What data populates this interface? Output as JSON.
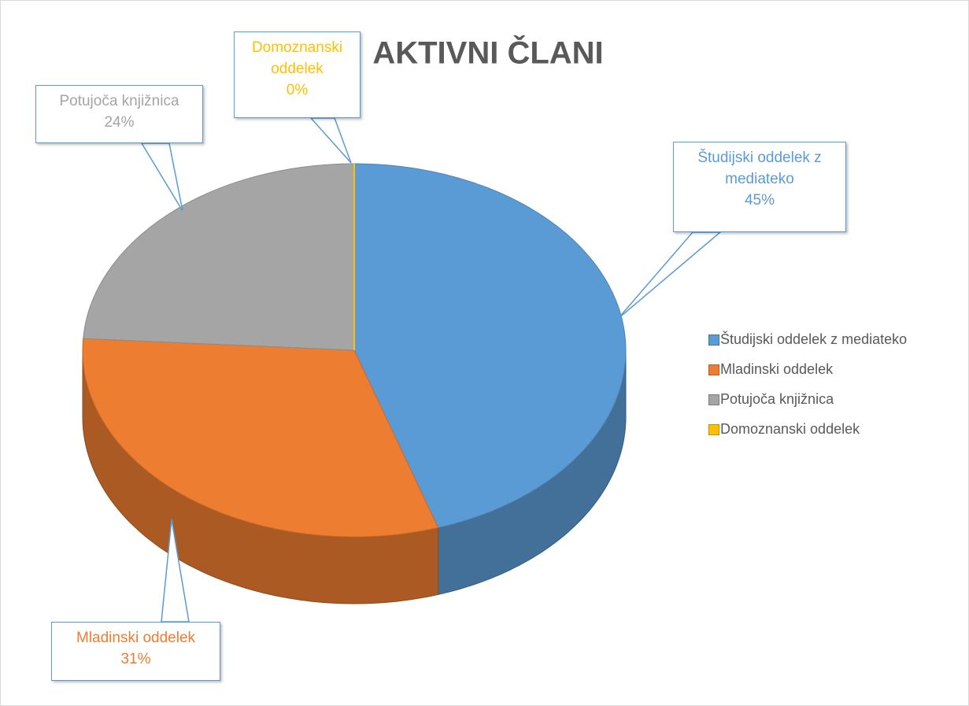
{
  "chart_data": {
    "type": "pie",
    "title": "AKTIVNI ČLANI",
    "categories": [
      "Študijski oddelek z mediateko",
      "Mladinski oddelek",
      "Potujoča knjižnica",
      "Domoznanski oddelek"
    ],
    "values": [
      45,
      31,
      24,
      0
    ],
    "value_labels": [
      "45%",
      "31%",
      "24%",
      "0%"
    ],
    "colors": [
      "#5b9bd5",
      "#ed7d31",
      "#a5a5a5",
      "#ffc000"
    ],
    "legend": "right"
  }
}
